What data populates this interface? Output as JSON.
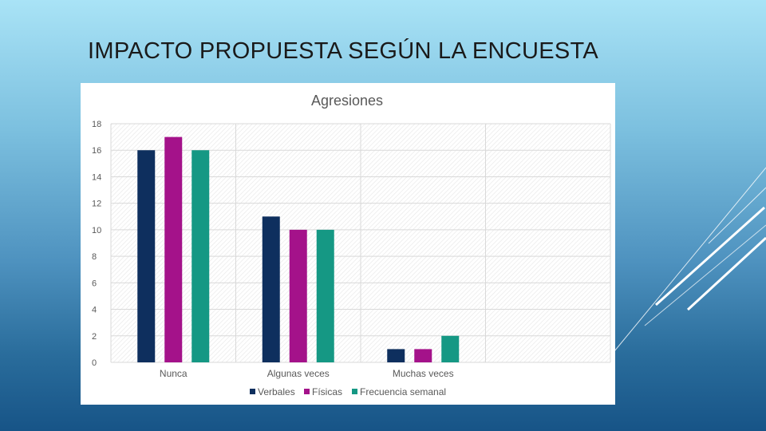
{
  "slide": {
    "title": "IMPACTO PROPUESTA SEGÚN LA ENCUESTA"
  },
  "colors": {
    "series_1": "#0e2f5e",
    "series_2": "#a4128a",
    "series_3": "#159884",
    "grid": "#d9d9d9",
    "text": "#595959"
  },
  "chart_data": {
    "type": "bar",
    "title": "Agresiones",
    "categories": [
      "Nunca",
      "Algunas veces",
      "Muchas veces",
      ""
    ],
    "series": [
      {
        "name": "Verbales",
        "values": [
          16,
          11,
          1,
          null
        ]
      },
      {
        "name": "Físicas",
        "values": [
          17,
          10,
          1,
          null
        ]
      },
      {
        "name": "Frecuencia semanal",
        "values": [
          16,
          10,
          2,
          null
        ]
      }
    ],
    "ylim": [
      0,
      18
    ],
    "yticks": [
      0,
      2,
      4,
      6,
      8,
      10,
      12,
      14,
      16,
      18
    ],
    "grid": true,
    "legend": "bottom"
  }
}
